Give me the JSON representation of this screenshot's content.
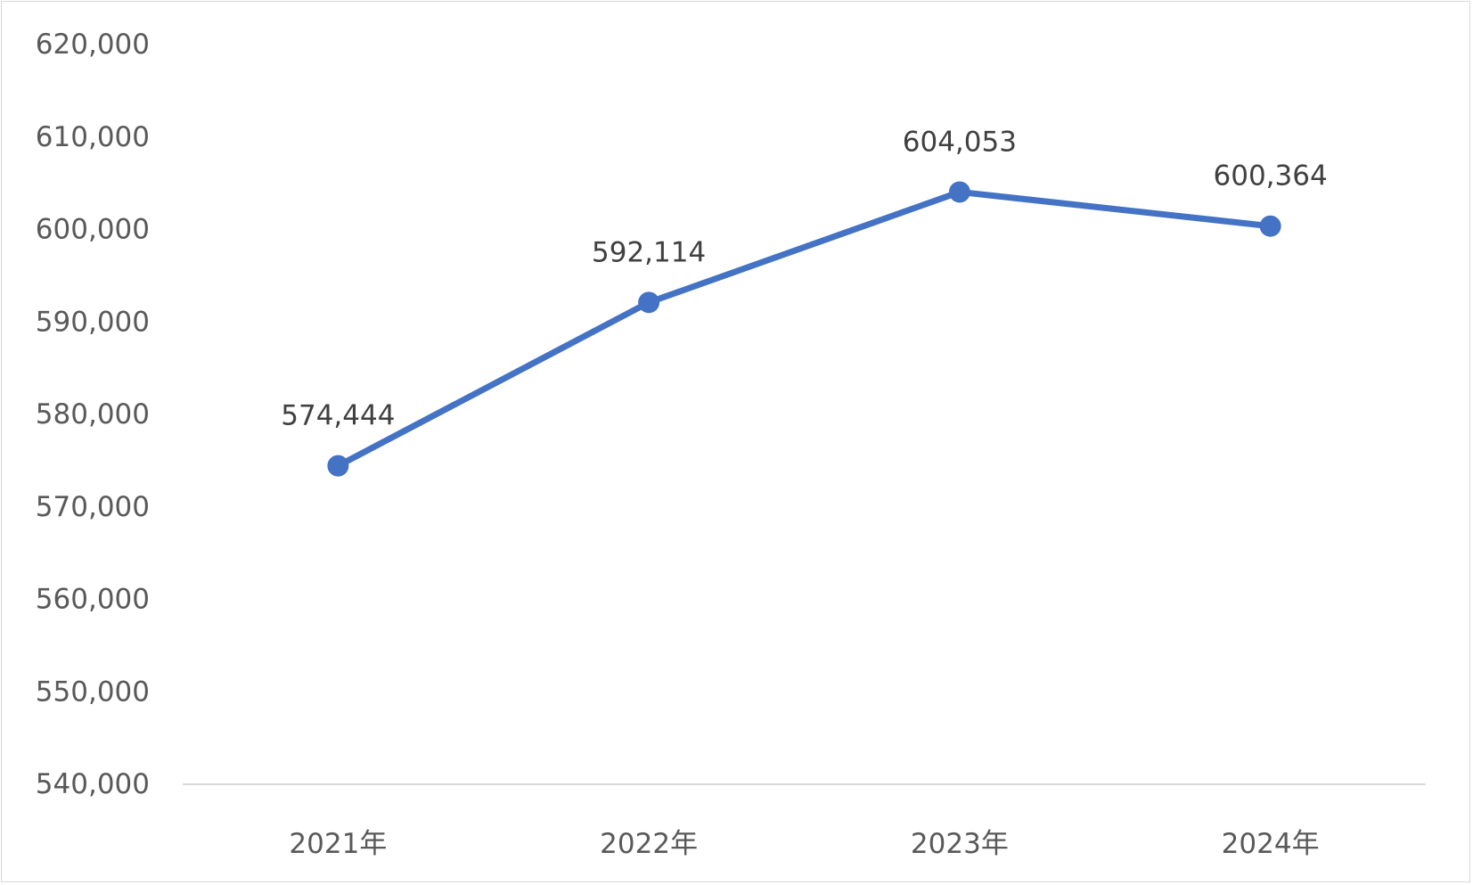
{
  "chart_data": {
    "type": "line",
    "title": "",
    "xlabel": "",
    "ylabel": "",
    "categories": [
      "2021年",
      "2022年",
      "2023年",
      "2024年"
    ],
    "series": [
      {
        "values": [
          574444,
          592114,
          604053,
          600364
        ],
        "labels": [
          "574,444",
          "592,114",
          "604,053",
          "600,364"
        ]
      }
    ],
    "ylim": [
      540000,
      620000
    ],
    "yticks": [
      540000,
      550000,
      560000,
      570000,
      580000,
      590000,
      600000,
      610000,
      620000
    ],
    "ytick_labels": [
      "540,000",
      "550,000",
      "560,000",
      "570,000",
      "580,000",
      "590,000",
      "600,000",
      "610,000",
      "620,000"
    ],
    "grid": false,
    "legend": "none",
    "colors": {
      "line": "#4472c4",
      "axis": "#d9d9d9",
      "tick_text": "#595959",
      "data_label_text": "#404040"
    }
  }
}
